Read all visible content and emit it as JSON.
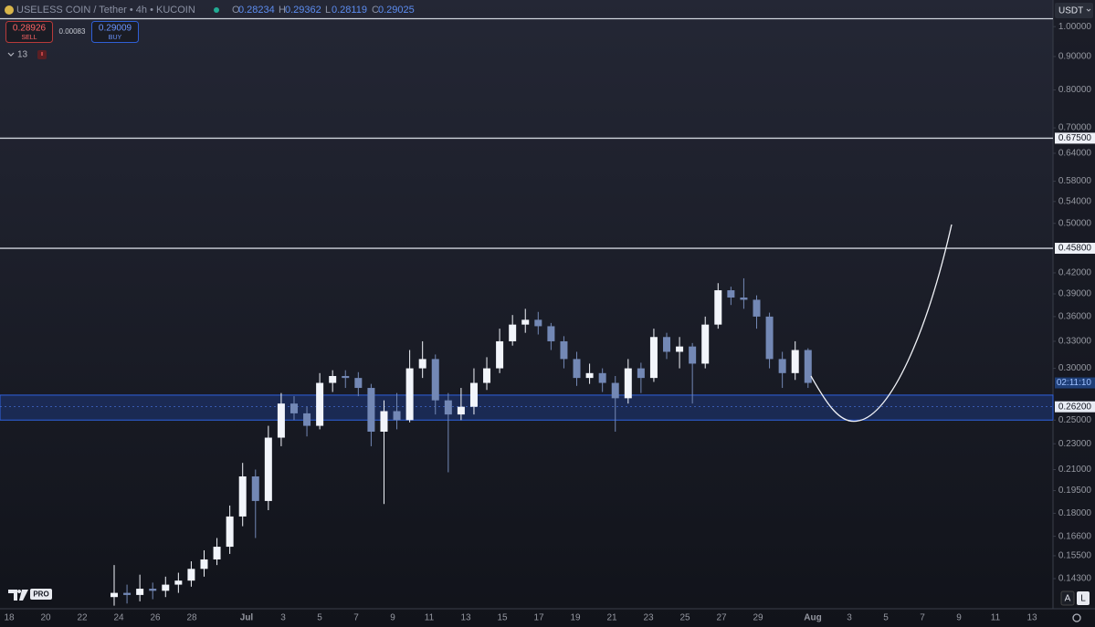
{
  "chart_data": {
    "type": "candlestick",
    "title": "USELESS COIN / Tether • 4h • KUCOIN",
    "ohlc_legend": [
      {
        "label": "O",
        "value": 0.28234
      },
      {
        "label": "H",
        "value": 0.29362
      },
      {
        "label": "L",
        "value": 0.28119
      },
      {
        "label": "C",
        "value": 0.29025
      }
    ],
    "candles": [
      [
        0.134,
        0.15,
        0.13,
        0.136
      ],
      [
        0.136,
        0.14,
        0.131,
        0.135
      ],
      [
        0.135,
        0.145,
        0.132,
        0.138
      ],
      [
        0.138,
        0.141,
        0.133,
        0.137
      ],
      [
        0.137,
        0.144,
        0.134,
        0.14
      ],
      [
        0.14,
        0.146,
        0.136,
        0.142
      ],
      [
        0.142,
        0.152,
        0.139,
        0.148
      ],
      [
        0.148,
        0.158,
        0.144,
        0.153
      ],
      [
        0.153,
        0.165,
        0.15,
        0.16
      ],
      [
        0.16,
        0.185,
        0.156,
        0.178
      ],
      [
        0.178,
        0.215,
        0.172,
        0.205
      ],
      [
        0.205,
        0.21,
        0.165,
        0.188
      ],
      [
        0.188,
        0.245,
        0.182,
        0.235
      ],
      [
        0.235,
        0.275,
        0.228,
        0.265
      ],
      [
        0.265,
        0.272,
        0.25,
        0.256
      ],
      [
        0.256,
        0.262,
        0.236,
        0.245
      ],
      [
        0.245,
        0.295,
        0.242,
        0.285
      ],
      [
        0.285,
        0.298,
        0.276,
        0.292
      ],
      [
        0.292,
        0.298,
        0.28,
        0.29
      ],
      [
        0.29,
        0.296,
        0.272,
        0.28
      ],
      [
        0.28,
        0.284,
        0.228,
        0.24
      ],
      [
        0.24,
        0.268,
        0.186,
        0.258
      ],
      [
        0.258,
        0.275,
        0.242,
        0.25
      ],
      [
        0.25,
        0.32,
        0.248,
        0.3
      ],
      [
        0.3,
        0.33,
        0.29,
        0.31
      ],
      [
        0.31,
        0.315,
        0.255,
        0.268
      ],
      [
        0.268,
        0.275,
        0.208,
        0.255
      ],
      [
        0.255,
        0.28,
        0.25,
        0.262
      ],
      [
        0.262,
        0.3,
        0.255,
        0.285
      ],
      [
        0.285,
        0.312,
        0.278,
        0.3
      ],
      [
        0.3,
        0.345,
        0.295,
        0.33
      ],
      [
        0.33,
        0.362,
        0.325,
        0.35
      ],
      [
        0.35,
        0.37,
        0.34,
        0.356
      ],
      [
        0.356,
        0.366,
        0.338,
        0.348
      ],
      [
        0.348,
        0.352,
        0.32,
        0.33
      ],
      [
        0.33,
        0.336,
        0.3,
        0.31
      ],
      [
        0.31,
        0.318,
        0.282,
        0.29
      ],
      [
        0.29,
        0.305,
        0.284,
        0.295
      ],
      [
        0.295,
        0.3,
        0.276,
        0.285
      ],
      [
        0.285,
        0.292,
        0.24,
        0.27
      ],
      [
        0.27,
        0.31,
        0.265,
        0.3
      ],
      [
        0.3,
        0.306,
        0.275,
        0.29
      ],
      [
        0.29,
        0.345,
        0.286,
        0.335
      ],
      [
        0.335,
        0.34,
        0.31,
        0.318
      ],
      [
        0.318,
        0.335,
        0.3,
        0.324
      ],
      [
        0.324,
        0.328,
        0.265,
        0.305
      ],
      [
        0.305,
        0.36,
        0.3,
        0.35
      ],
      [
        0.35,
        0.405,
        0.345,
        0.395
      ],
      [
        0.395,
        0.4,
        0.375,
        0.385
      ],
      [
        0.385,
        0.412,
        0.37,
        0.382
      ],
      [
        0.382,
        0.388,
        0.345,
        0.36
      ],
      [
        0.36,
        0.365,
        0.3,
        0.31
      ],
      [
        0.31,
        0.318,
        0.28,
        0.295
      ],
      [
        0.295,
        0.33,
        0.288,
        0.32
      ],
      [
        0.32,
        0.322,
        0.28,
        0.285
      ]
    ],
    "up_color": "#f2f5fb",
    "down_color": "#7388b5",
    "log_scale": true,
    "ylim": [
      0.1286,
      1.03
    ],
    "yticks": [
      {
        "value": 1.0,
        "label": "1.00000"
      },
      {
        "value": 0.9,
        "label": "0.90000"
      },
      {
        "value": 0.8,
        "label": "0.80000"
      },
      {
        "value": 0.7,
        "label": "0.70000"
      },
      {
        "value": 0.64,
        "label": "0.64000"
      },
      {
        "value": 0.58,
        "label": "0.58000"
      },
      {
        "value": 0.54,
        "label": "0.54000"
      },
      {
        "value": 0.5,
        "label": "0.50000"
      },
      {
        "value": 0.42,
        "label": "0.42000"
      },
      {
        "value": 0.39,
        "label": "0.39000"
      },
      {
        "value": 0.36,
        "label": "0.36000"
      },
      {
        "value": 0.33,
        "label": "0.33000"
      },
      {
        "value": 0.3,
        "label": "0.30000"
      },
      {
        "value": 0.25,
        "label": "0.25000"
      },
      {
        "value": 0.23,
        "label": "0.23000"
      },
      {
        "value": 0.21,
        "label": "0.21000"
      },
      {
        "value": 0.195,
        "label": "0.19500"
      },
      {
        "value": 0.18,
        "label": "0.18000"
      },
      {
        "value": 0.166,
        "label": "0.16600"
      },
      {
        "value": 0.155,
        "label": "0.15500"
      },
      {
        "value": 0.143,
        "label": "0.14300"
      }
    ],
    "x_labels": [
      "18",
      "20",
      "22",
      "24",
      "26",
      "28",
      "Jul",
      "3",
      "5",
      "7",
      "9",
      "11",
      "13",
      "15",
      "17",
      "19",
      "21",
      "23",
      "25",
      "27",
      "29",
      "Aug",
      "3",
      "5",
      "7",
      "9",
      "11",
      "13"
    ],
    "levels": [
      {
        "value": 0.675,
        "label": "0.67500"
      },
      {
        "value": 0.458,
        "label": "0.45800"
      }
    ],
    "zone": {
      "range": [
        0.25,
        0.273
      ],
      "mark": {
        "value": 0.262,
        "label": "0.26200"
      }
    },
    "countdown": "02:11:10"
  },
  "trade_panel": {
    "sell_price": 0.28926,
    "sell_label": "SELL",
    "spread": 0.00083,
    "buy_price": 0.29009,
    "buy_label": "BUY"
  },
  "indicators_count": 13,
  "currency": "USDT",
  "scale_buttons": [
    "A",
    "L"
  ],
  "logo_badge": "PRO"
}
